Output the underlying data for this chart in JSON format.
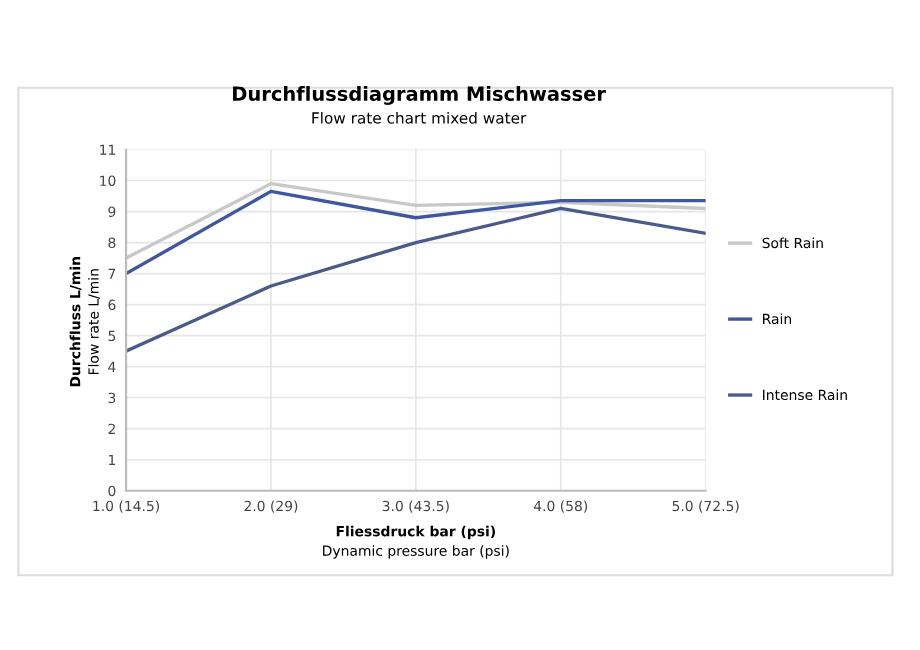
{
  "chart_data": {
    "type": "line",
    "title": "Durchflussdiagramm Mischwasser",
    "subtitle": "Flow rate chart mixed water",
    "xlabel": "Fliessdruck bar (psi)\nDynamic pressure bar (psi)",
    "ylabel": "Durchfluss L/min\nFlow rate L/min",
    "categories": [
      "1.0 (14.5)",
      "2.0 (29)",
      "3.0 (43.5)",
      "4.0 (58)",
      "5.0 (72.5)"
    ],
    "series": [
      {
        "name": "Soft Rain",
        "color": "#c8c8c8",
        "values": [
          7.5,
          9.9,
          9.2,
          9.3,
          9.1
        ]
      },
      {
        "name": "Rain",
        "color": "#3f56a0",
        "values": [
          7.0,
          9.65,
          8.8,
          9.35,
          9.35
        ]
      },
      {
        "name": "Intense Rain",
        "color": "#4a5a8a",
        "values": [
          4.5,
          6.6,
          8.0,
          9.1,
          8.3
        ]
      }
    ],
    "ylim": [
      0,
      11
    ],
    "yticks": [
      0,
      1,
      2,
      3,
      4,
      5,
      6,
      7,
      8,
      9,
      10,
      11
    ],
    "grid": true,
    "legend": "right",
    "marker": "none",
    "line_style": "solid"
  }
}
